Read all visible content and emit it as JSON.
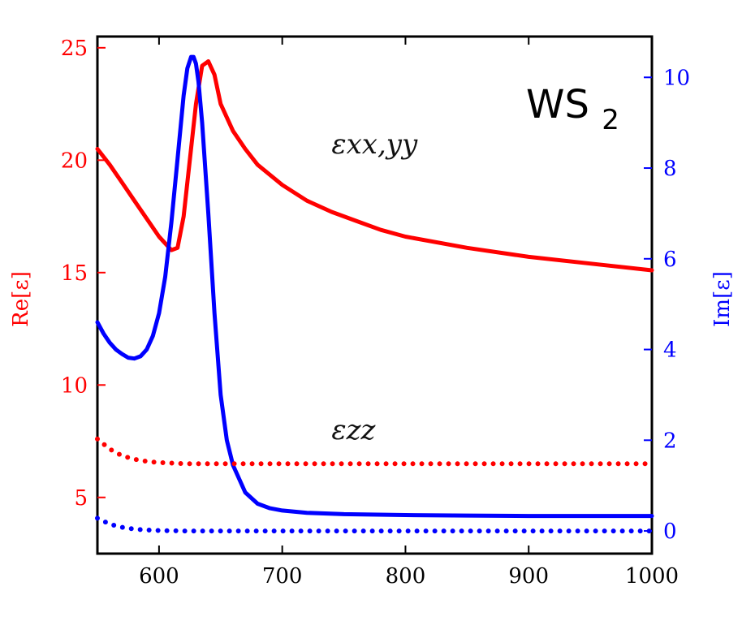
{
  "chart_data": {
    "type": "line",
    "title": "WS",
    "title_subscript": "2",
    "xlabel": "",
    "ylabel_left": "Re[ε]",
    "ylabel_right": "Im[ε]",
    "xlim": [
      550,
      1000
    ],
    "ylim_left": [
      2.5,
      25.5
    ],
    "ylim_right": [
      -0.5,
      10.9
    ],
    "x_ticks": [
      600,
      700,
      800,
      900,
      1000
    ],
    "y_left_ticks": [
      5,
      10,
      15,
      20,
      25
    ],
    "y_right_ticks": [
      0,
      2,
      4,
      6,
      8,
      10
    ],
    "grid": false,
    "colors": {
      "re": "#ff0000",
      "im": "#0000ff",
      "axis": "#000000"
    },
    "annotations": [
      {
        "text": "εxx,yy",
        "x": 740,
        "y_left": 20.3
      },
      {
        "text": "εzz",
        "x": 740,
        "y_left": 7.6
      }
    ],
    "series": [
      {
        "name": "Re ε xx,yy",
        "axis": "left",
        "style": "solid",
        "x": [
          550,
          560,
          570,
          580,
          590,
          600,
          610,
          615,
          620,
          625,
          630,
          635,
          640,
          645,
          650,
          660,
          670,
          680,
          700,
          720,
          740,
          760,
          780,
          800,
          850,
          900,
          950,
          1000
        ],
        "y": [
          20.5,
          19.8,
          19.0,
          18.2,
          17.4,
          16.6,
          16.0,
          16.1,
          17.5,
          20.0,
          22.5,
          24.2,
          24.4,
          23.8,
          22.5,
          21.3,
          20.5,
          19.8,
          18.9,
          18.2,
          17.7,
          17.3,
          16.9,
          16.6,
          16.1,
          15.7,
          15.4,
          15.1
        ]
      },
      {
        "name": "Im ε xx,yy",
        "axis": "right",
        "style": "solid",
        "x": [
          550,
          555,
          560,
          565,
          570,
          575,
          580,
          585,
          590,
          595,
          600,
          605,
          610,
          615,
          620,
          623,
          626,
          628,
          630,
          632,
          635,
          640,
          645,
          650,
          655,
          660,
          670,
          680,
          690,
          700,
          720,
          750,
          800,
          850,
          900,
          950,
          1000
        ],
        "y": [
          4.6,
          4.35,
          4.15,
          4.0,
          3.9,
          3.82,
          3.8,
          3.85,
          4.0,
          4.3,
          4.8,
          5.6,
          6.8,
          8.2,
          9.6,
          10.2,
          10.45,
          10.45,
          10.3,
          9.9,
          9.0,
          7.0,
          4.8,
          3.0,
          2.0,
          1.45,
          0.85,
          0.6,
          0.5,
          0.45,
          0.4,
          0.37,
          0.35,
          0.34,
          0.33,
          0.33,
          0.33
        ]
      },
      {
        "name": "Re ε zz",
        "axis": "left",
        "style": "dotted",
        "x": [
          550,
          560,
          570,
          580,
          590,
          600,
          620,
          650,
          700,
          800,
          900,
          1000
        ],
        "y": [
          7.6,
          7.15,
          6.85,
          6.7,
          6.6,
          6.55,
          6.5,
          6.5,
          6.5,
          6.5,
          6.5,
          6.5
        ]
      },
      {
        "name": "Im ε zz",
        "axis": "right",
        "style": "dotted",
        "x": [
          550,
          560,
          570,
          580,
          590,
          600,
          620,
          650,
          700,
          800,
          900,
          1000
        ],
        "y": [
          0.28,
          0.15,
          0.08,
          0.04,
          0.02,
          0.01,
          0.0,
          0.0,
          0.0,
          0.0,
          0.0,
          0.0
        ]
      }
    ]
  }
}
